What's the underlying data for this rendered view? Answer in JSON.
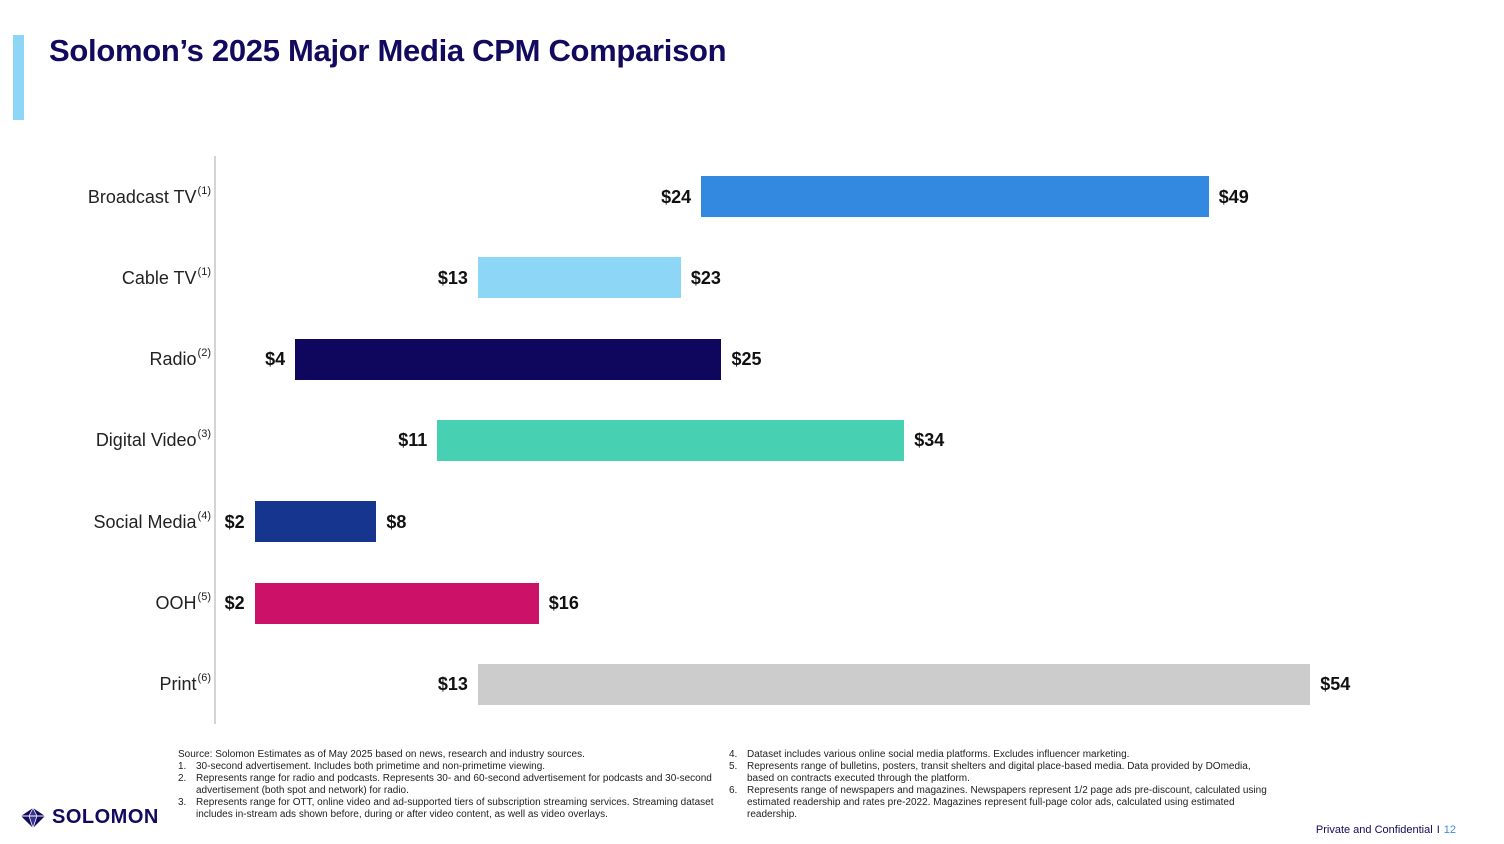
{
  "title": "Solomon’s 2025 Major Media CPM Comparison",
  "chart_data": {
    "type": "bar",
    "subtype": "floating-range-horizontal",
    "categories": [
      "Broadcast TV",
      "Cable TV",
      "Radio",
      "Digital Video",
      "Social Media",
      "OOH",
      "Print"
    ],
    "footnote_refs": [
      "(1)",
      "(1)",
      "(2)",
      "(3)",
      "(4)",
      "(5)",
      "(6)"
    ],
    "low": [
      24,
      13,
      4,
      11,
      2,
      2,
      13
    ],
    "high": [
      49,
      23,
      25,
      34,
      8,
      16,
      54
    ],
    "low_labels": [
      "$24",
      "$13",
      "$4",
      "$11",
      "$2",
      "$2",
      "$13"
    ],
    "high_labels": [
      "$49",
      "$23",
      "$25",
      "$34",
      "$8",
      "$16",
      "$54"
    ],
    "colors": [
      "#3388e0",
      "#8ed6f5",
      "#0f075e",
      "#47d1b2",
      "#15358f",
      "#cc1268",
      "#cccccc"
    ],
    "xlim": [
      0,
      54
    ],
    "grid": false,
    "legend": "none"
  },
  "footnotes": {
    "source": "Source: Solomon Estimates as of May 2025 based on news, research and industry sources.",
    "col1": [
      {
        "num": "1.",
        "text": "30-second advertisement. Includes both primetime and non-primetime viewing."
      },
      {
        "num": "2.",
        "text": "Represents range for radio and podcasts. Represents 30- and 60-second advertisement for podcasts and 30-second advertisement (both spot and network) for radio."
      },
      {
        "num": "3.",
        "text": "Represents range for OTT, online video and ad-supported tiers of subscription streaming services. Streaming dataset includes in-stream ads shown before, during or after video content, as well as video overlays."
      }
    ],
    "col2": [
      {
        "num": "4.",
        "text": "Dataset includes various online social media platforms. Excludes influencer marketing."
      },
      {
        "num": "5.",
        "text": "Represents range of bulletins, posters, transit shelters and digital place-based media. Data provided by DOmedia, based on contracts executed through the platform."
      },
      {
        "num": "6.",
        "text": "Represents range of newspapers and magazines. Newspapers represent 1/2 page ads pre-discount, calculated using estimated readership and rates pre-2022. Magazines represent full-page color ads, calculated using estimated readership."
      }
    ]
  },
  "logo": {
    "text": "SOLOMON",
    "icon": "solomon-gem-icon",
    "color": "#120a5e"
  },
  "footer": {
    "confidential": "Private and Confidential",
    "separator": "I",
    "page": "12"
  }
}
